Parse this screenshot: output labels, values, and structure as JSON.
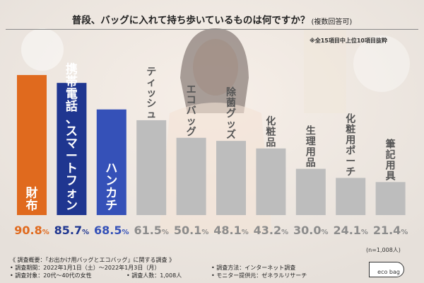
{
  "header": {
    "title": "普段、バッグに入れて持ち歩いているものは何ですか？",
    "title_note": "(複数回答可)",
    "subnote": "※全15項目中上位10項目抜粋"
  },
  "chart_data": {
    "type": "bar",
    "categories": [
      "財布",
      "携帯電話、スマートフォン",
      "ハンカチ",
      "ティッシュ",
      "エコバッグ",
      "除菌グッズ",
      "化粧品",
      "生理用品",
      "化粧用ポーチ",
      "筆記用具"
    ],
    "values": [
      90.8,
      85.7,
      68.5,
      61.5,
      50.1,
      48.1,
      43.2,
      30.0,
      24.1,
      21.4
    ],
    "value_labels": [
      "90.8%",
      "85.7%",
      "68.5%",
      "61.5%",
      "50.1%",
      "48.1%",
      "43.2%",
      "30.0%",
      "24.1%",
      "21.4%"
    ],
    "unit": "%",
    "ylim": [
      0,
      100
    ],
    "colors": [
      "#e06a1e",
      "#1f3690",
      "#3551b8",
      "#bdbdbd",
      "#bdbdbd",
      "#bdbdbd",
      "#bdbdbd",
      "#bdbdbd",
      "#bdbdbd",
      "#bdbdbd"
    ],
    "value_colors": [
      "#e06a1e",
      "#1f3690",
      "#3551b8",
      "#8c8c8c",
      "#8c8c8c",
      "#8c8c8c",
      "#8c8c8c",
      "#8c8c8c",
      "#8c8c8c",
      "#8c8c8c"
    ],
    "n_label": "(n=1,008人)"
  },
  "footer": {
    "l1": "《 調査概要：「お出かけ用バッグとエコバッグ」に関する調査 》",
    "l2": "• 調査期間：2022年1月1日（土）〜2022年1月3日（月）",
    "l3a": "• 調査対象：20代〜40代の女性",
    "l3b": "• 調査人数：1,008人",
    "r2": "• 調査方法：インターネット調査",
    "r3": "• モニター提供元：ゼネラルリサーチ",
    "logo_text": "eco bag"
  }
}
